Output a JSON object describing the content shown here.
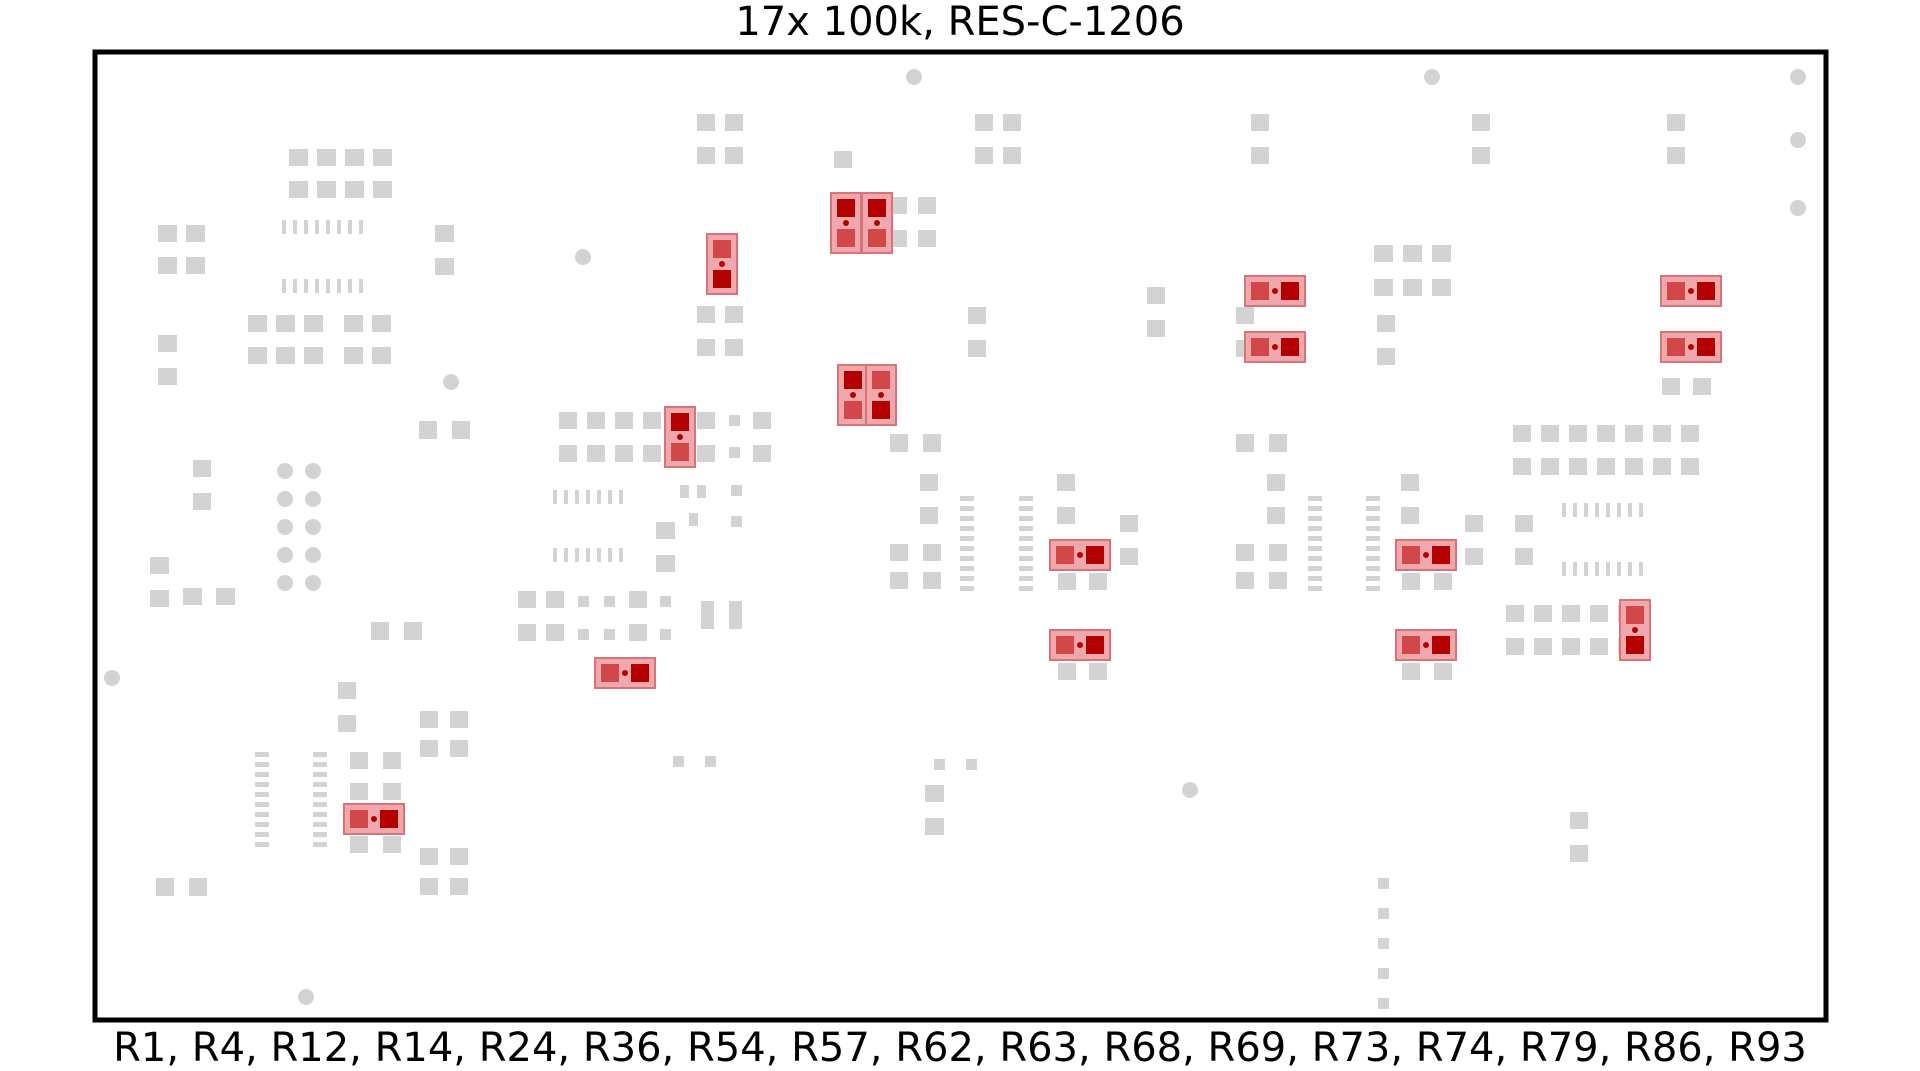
{
  "title": "17x 100k, RES-C-1206",
  "reference_list": "R1, R4, R12, R14, R24, R36, R54, R57, R62, R63, R68, R69, R73, R74, R79, R86, R93",
  "colors": {
    "background_pad": "#d3d3d3",
    "highlight_body": "#f0a8ad",
    "highlight_border": "#d9737a",
    "pad_pin1": "#b30000",
    "pad_pin2": "#d24848",
    "outline": "#000000"
  }
}
